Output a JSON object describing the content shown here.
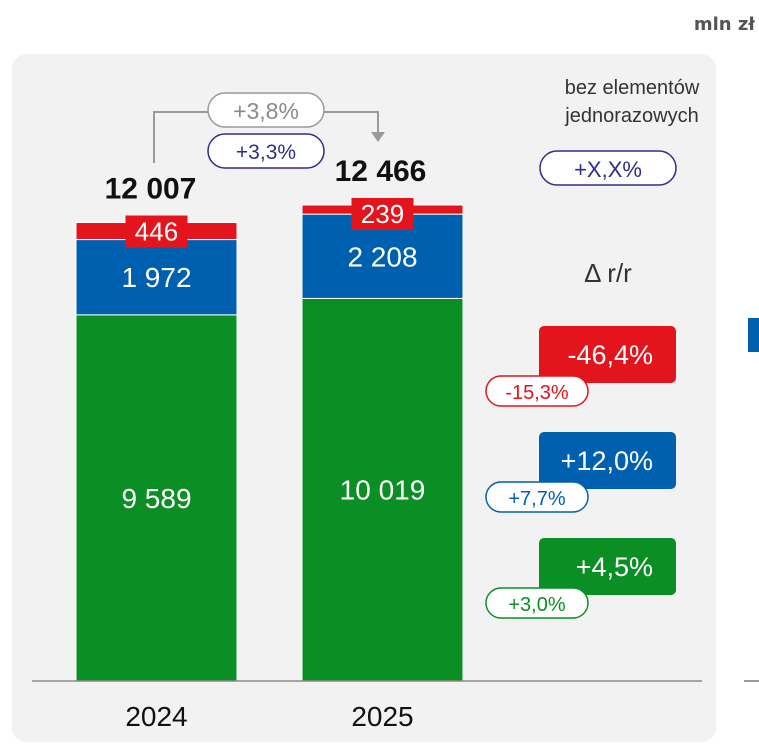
{
  "unit": "mln zł",
  "colors": {
    "green": "#0b8f24",
    "blue": "#0060b0",
    "red": "#e3141c",
    "grey": "#9a9a9a",
    "navy": "#2f2d85"
  },
  "legend": {
    "note_line1": "bez elementów",
    "note_line2": "jednorazowych",
    "sample_pill": "+X,X%",
    "delta_label": "Δ r/r"
  },
  "total_change": {
    "reported": "+3,8%",
    "excl_one_offs": "+3,3%"
  },
  "chart_data": {
    "type": "bar",
    "stacked": true,
    "categories": [
      "2024",
      "2025"
    ],
    "series": [
      {
        "key": "green",
        "values": [
          9589,
          10019
        ],
        "labels": [
          "9 589",
          "10 019"
        ],
        "change": "+4,5%",
        "change_excl": "+3,0%"
      },
      {
        "key": "blue",
        "values": [
          1972,
          2208
        ],
        "labels": [
          "1 972",
          "2 208"
        ],
        "change": "+12,0%",
        "change_excl": "+7,7%"
      },
      {
        "key": "red",
        "values": [
          446,
          239
        ],
        "labels": [
          "446",
          "239"
        ],
        "change": "-46,4%",
        "change_excl": "-15,3%"
      }
    ],
    "totals": [
      12007,
      12466
    ],
    "total_labels": [
      "12 007",
      "12 466"
    ],
    "ylim": [
      0,
      12466
    ],
    "grid": false,
    "legend_position": "right"
  }
}
